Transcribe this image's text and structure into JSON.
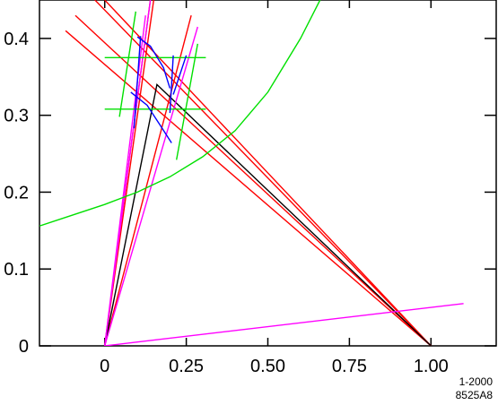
{
  "chart_data": {
    "type": "line",
    "title": "",
    "xlabel": "",
    "ylabel": "",
    "xlim": [
      -0.2,
      1.2
    ],
    "ylim": [
      0,
      0.45
    ],
    "x_ticks": [
      0,
      0.25,
      0.5,
      0.75,
      1.0
    ],
    "x_tick_labels": [
      "0",
      "0.25",
      "0.50",
      "0.75",
      "1.00"
    ],
    "y_ticks": [
      0,
      0.1,
      0.2,
      0.3,
      0.4
    ],
    "y_tick_labels": [
      "0",
      "0.1",
      "0.2",
      "0.3",
      "0.4"
    ],
    "grid": false,
    "corner_label": [
      "1-2000",
      "8525A8"
    ],
    "colors": {
      "red": "#ff0000",
      "magenta": "#ff00ff",
      "green": "#00e000",
      "blue": "#0000ff",
      "black": "#000000"
    },
    "series": [
      {
        "color": "red",
        "points": [
          [
            -0.12,
            0.41
          ],
          [
            1.0,
            0.0
          ]
        ]
      },
      {
        "color": "red",
        "points": [
          [
            -0.09,
            0.43
          ],
          [
            1.0,
            0.0
          ]
        ]
      },
      {
        "color": "red",
        "points": [
          [
            -0.03,
            0.45
          ],
          [
            1.0,
            0.0
          ]
        ]
      },
      {
        "color": "red",
        "points": [
          [
            0.0,
            0.45
          ],
          [
            1.0,
            0.0
          ]
        ]
      },
      {
        "color": "red",
        "points": [
          [
            0.0,
            0.0
          ],
          [
            0.14,
            0.45
          ]
        ]
      },
      {
        "color": "red",
        "points": [
          [
            0.0,
            0.0
          ],
          [
            0.15,
            0.45
          ]
        ]
      },
      {
        "color": "red",
        "points": [
          [
            0.0,
            0.0
          ],
          [
            0.265,
            0.43
          ]
        ]
      },
      {
        "color": "black",
        "points": [
          [
            0.0,
            0.0
          ],
          [
            0.16,
            0.34
          ],
          [
            1.0,
            0.0
          ]
        ]
      },
      {
        "color": "magenta",
        "points": [
          [
            0.0,
            0.0
          ],
          [
            0.125,
            0.43
          ]
        ]
      },
      {
        "color": "magenta",
        "points": [
          [
            0.0,
            0.0
          ],
          [
            0.14,
            0.45
          ]
        ]
      },
      {
        "color": "magenta",
        "points": [
          [
            0.0,
            0.0
          ],
          [
            0.285,
            0.415
          ]
        ]
      },
      {
        "color": "magenta",
        "points": [
          [
            0.0,
            0.0
          ],
          [
            1.1,
            0.055
          ]
        ]
      },
      {
        "color": "green",
        "points": [
          [
            -0.2,
            0.156
          ],
          [
            -0.1,
            0.17
          ],
          [
            0.0,
            0.184
          ],
          [
            0.1,
            0.2
          ],
          [
            0.2,
            0.22
          ],
          [
            0.3,
            0.246
          ],
          [
            0.4,
            0.28
          ],
          [
            0.5,
            0.33
          ],
          [
            0.6,
            0.4
          ],
          [
            0.66,
            0.45
          ]
        ]
      },
      {
        "color": "green",
        "points": [
          [
            0.0,
            0.375
          ],
          [
            0.31,
            0.375
          ]
        ]
      },
      {
        "color": "green",
        "points": [
          [
            0.0,
            0.308
          ],
          [
            0.31,
            0.308
          ]
        ]
      },
      {
        "color": "green",
        "points": [
          [
            0.045,
            0.298
          ],
          [
            0.095,
            0.435
          ]
        ]
      },
      {
        "color": "green",
        "points": [
          [
            0.22,
            0.242
          ],
          [
            0.285,
            0.393
          ]
        ]
      },
      {
        "color": "blue",
        "points": [
          [
            0.1,
            0.402
          ],
          [
            0.14,
            0.39
          ],
          [
            0.18,
            0.362
          ],
          [
            0.2,
            0.335
          ]
        ]
      },
      {
        "color": "blue",
        "points": [
          [
            0.08,
            0.33
          ],
          [
            0.13,
            0.313
          ],
          [
            0.17,
            0.287
          ],
          [
            0.205,
            0.264
          ]
        ]
      },
      {
        "color": "blue",
        "points": [
          [
            0.09,
            0.283
          ],
          [
            0.11,
            0.403
          ]
        ]
      },
      {
        "color": "blue",
        "points": [
          [
            0.2,
            0.303
          ],
          [
            0.21,
            0.378
          ]
        ]
      },
      {
        "color": "blue",
        "points": [
          [
            0.21,
            0.327
          ],
          [
            0.25,
            0.378
          ]
        ]
      }
    ]
  }
}
